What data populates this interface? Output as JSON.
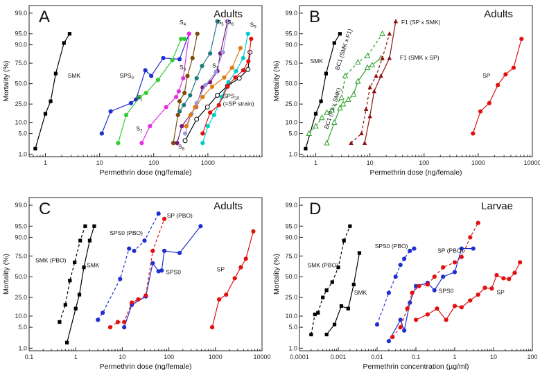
{
  "chart_data": [
    {
      "type": "line",
      "panel_letter": "A",
      "title": "Adults",
      "xlabel": "Permethrin dose (ng/female)",
      "ylabel": "Mortality (%)",
      "xscale": "log",
      "yscale": "probit",
      "xlim": [
        0.5,
        10000
      ],
      "ylim": [
        0.8,
        99.5
      ],
      "xticks": [
        1,
        10,
        100,
        1000
      ],
      "yticks": [
        1.0,
        5.0,
        10.0,
        25.0,
        50.0,
        75.0,
        90.0,
        95.0,
        99.0
      ],
      "series": [
        {
          "name": "SMK",
          "color": "#000000",
          "marker": "square",
          "dash": false,
          "x": [
            0.65,
            1.0,
            1.25,
            1.55,
            2.2,
            2.8
          ],
          "y": [
            1.6,
            16,
            28,
            63,
            91,
            95
          ]
        },
        {
          "name": "SPS0",
          "color": "#1f2fd0",
          "marker": "circle",
          "dash": false,
          "x": [
            11,
            16,
            38,
            47,
            70,
            90,
            150,
            300,
            450
          ],
          "y": [
            5,
            18,
            26,
            30,
            67,
            60,
            80,
            79,
            95
          ]
        },
        {
          "name": "S1",
          "color": "#33cc33",
          "marker": "circle",
          "dash": false,
          "x": [
            22,
            31,
            55,
            72,
            120,
            220,
            320,
            370
          ],
          "y": [
            2.5,
            15,
            33,
            38,
            55,
            78,
            93,
            93
          ]
        },
        {
          "name": "S2",
          "color": "#e030e0",
          "marker": "circle",
          "dash": false,
          "x": [
            60,
            85,
            170,
            260,
            290,
            350,
            450
          ],
          "y": [
            2.5,
            8,
            22,
            33,
            40,
            57,
            95
          ]
        },
        {
          "name": "S3",
          "color": "#7a4a0a",
          "marker": "circle",
          "dash": false,
          "x": [
            230,
            280,
            300,
            370,
            420,
            520,
            640
          ],
          "y": [
            2.5,
            15,
            28,
            38,
            60,
            80,
            95
          ]
        },
        {
          "name": "S4",
          "color": "#1f7a80",
          "marker": "circle",
          "dash": false,
          "x": [
            300,
            360,
            470,
            620,
            780,
            1100,
            1500
          ],
          "y": [
            18,
            24,
            35,
            57,
            72,
            84,
            98
          ]
        },
        {
          "name": "S5",
          "color": "#7a1a7a",
          "marker": "circle",
          "dash": false,
          "x": [
            270,
            330,
            600,
            800,
            1100,
            1500,
            1700,
            2300
          ],
          "y": [
            2.5,
            8,
            22,
            45,
            52,
            66,
            84,
            98
          ]
        },
        {
          "name": "S6",
          "color": "#9a9ae0",
          "marker": "circle",
          "dash": false,
          "x": [
            380,
            500,
            620,
            900,
            1400,
            1900,
            2400
          ],
          "y": [
            5,
            16,
            26,
            48,
            65,
            85,
            98
          ]
        },
        {
          "name": "S7",
          "color": "#e07a10",
          "marker": "circle",
          "dash": false,
          "x": [
            400,
            480,
            580,
            800,
            1200,
            2000,
            2800,
            4000
          ],
          "y": [
            8,
            15,
            22,
            33,
            46,
            58,
            70,
            88
          ]
        },
        {
          "name": "S8",
          "color": "#00cccc",
          "marker": "circle",
          "dash": false,
          "x": [
            800,
            1000,
            1300,
            1800,
            2400,
            3300,
            4500,
            5500
          ],
          "y": [
            2.5,
            8,
            15,
            33,
            52,
            66,
            80,
            95
          ]
        },
        {
          "name": "SPS10 (=SP strain)",
          "color": "#000000",
          "marker": "open-circle",
          "dash": false,
          "x": [
            380,
            620,
            980,
            1500,
            2300,
            3800,
            5500,
            6000
          ],
          "y": [
            3,
            12,
            22,
            35,
            47,
            57,
            68,
            85
          ]
        },
        {
          "name": "SP",
          "color": "#e01010",
          "marker": "circle",
          "dash": false,
          "x": [
            800,
            1100,
            1600,
            2300,
            3200,
            4500,
            5600,
            6300
          ],
          "y": [
            5,
            17,
            24,
            46,
            58,
            67,
            77,
            93
          ]
        }
      ],
      "annotations": [
        "SMK",
        "SPS0",
        "S1",
        "S2",
        "S3",
        "S4",
        "S5",
        "S6",
        "S7",
        "S8",
        "SPS10",
        "(=SP strain)",
        "S9"
      ]
    },
    {
      "type": "line",
      "panel_letter": "B",
      "title": "Adults",
      "xlabel": "Permethrin dose (ng/female)",
      "ylabel": "Mortality (%)",
      "xscale": "log",
      "yscale": "probit",
      "xlim": [
        0.5,
        10000
      ],
      "ylim": [
        0.8,
        99.5
      ],
      "xticks": [
        1,
        10,
        100,
        1000,
        10000
      ],
      "yticks": [
        1.0,
        5.0,
        10.0,
        25.0,
        50.0,
        75.0,
        90.0,
        95.0,
        99.0
      ],
      "series": [
        {
          "name": "SMK",
          "color": "#000000",
          "marker": "square",
          "dash": false,
          "x": [
            0.65,
            1.0,
            1.25,
            1.55,
            2.2,
            2.8
          ],
          "y": [
            1.6,
            16,
            28,
            63,
            91,
            95
          ]
        },
        {
          "name": "BC1 (SMK x F1)",
          "color": "#2aa02a",
          "marker": "open-triangle",
          "dash": true,
          "x": [
            0.75,
            1.0,
            1.3,
            1.6,
            2.0,
            3.0,
            3.5,
            6.0,
            9.0,
            17.0
          ],
          "y": [
            5,
            8,
            13,
            17,
            19,
            32,
            60,
            76,
            82,
            95
          ]
        },
        {
          "name": "BC1 (F1 x SMK)",
          "color": "#2aa02a",
          "marker": "open-triangle",
          "dash": false,
          "x": [
            1.6,
            2.2,
            2.8,
            3.2,
            4.0,
            5.0,
            6.0,
            9.0,
            11.0,
            16.0
          ],
          "y": [
            2.5,
            10,
            21,
            25,
            30,
            36,
            53,
            70,
            73,
            80
          ]
        },
        {
          "name": "F1 (SP x SMK)",
          "color": "#8b1010",
          "marker": "triangle",
          "dash": true,
          "x": [
            4.5,
            7.0,
            8.5,
            10.0,
            13.0,
            17.0,
            23.0
          ],
          "y": [
            2.5,
            5,
            20,
            45,
            60,
            80,
            95
          ]
        },
        {
          "name": "F1 (SMK x SP)",
          "color": "#8b1010",
          "marker": "triangle",
          "dash": false,
          "x": [
            8.0,
            10.0,
            12.0,
            16.0,
            23.0,
            30.0
          ],
          "y": [
            2.5,
            14,
            40,
            60,
            80,
            98
          ]
        },
        {
          "name": "SP",
          "color": "#e01010",
          "marker": "circle",
          "dash": false,
          "x": [
            800,
            1100,
            1600,
            2300,
            3200,
            4500,
            6300
          ],
          "y": [
            5,
            18,
            26,
            48,
            62,
            70,
            93
          ]
        }
      ],
      "annotations": [
        "SMK",
        "BC1 (SMK x F1)",
        "BC1 (F1 x SMK)",
        "F1 (SP x SMK)",
        "F1 (SMK x SP)",
        "SP"
      ]
    },
    {
      "type": "line",
      "panel_letter": "C",
      "title": "Adults",
      "xlabel": "Permethrin dose (ng/female)",
      "ylabel": "Mortality (%)",
      "xscale": "log",
      "yscale": "probit",
      "xlim": [
        0.1,
        10000
      ],
      "ylim": [
        0.8,
        99.5
      ],
      "xticks": [
        0.1,
        1,
        10,
        100,
        1000,
        10000
      ],
      "yticks": [
        1.0,
        5.0,
        10.0,
        25.0,
        50.0,
        75.0,
        90.0,
        95.0,
        99.0
      ],
      "series": [
        {
          "name": "SMK (PBO)",
          "color": "#000000",
          "marker": "square",
          "dash": true,
          "x": [
            0.45,
            0.6,
            0.75,
            0.95,
            1.25,
            1.6
          ],
          "y": [
            7,
            18,
            45,
            68,
            88,
            95
          ]
        },
        {
          "name": "SMK",
          "color": "#000000",
          "marker": "square",
          "dash": false,
          "x": [
            0.65,
            1.0,
            1.2,
            1.5,
            2.0,
            2.5
          ],
          "y": [
            1.6,
            15,
            28,
            62,
            88,
            95
          ]
        },
        {
          "name": "SPS0 (PBO)",
          "color": "#1f2fd0",
          "marker": "circle",
          "dash": true,
          "x": [
            3.0,
            3.8,
            9.0,
            14.0,
            18.0,
            30.0,
            60.0
          ],
          "y": [
            8,
            12,
            47,
            82,
            80,
            88,
            98
          ]
        },
        {
          "name": "SPS0",
          "color": "#1f2fd0",
          "marker": "circle",
          "dash": false,
          "x": [
            11,
            16,
            32,
            45,
            60,
            70,
            80,
            170,
            480
          ],
          "y": [
            5,
            18,
            26,
            67,
            57,
            58,
            80,
            78,
            95
          ]
        },
        {
          "name": "SP (PBO)",
          "color": "#e01010",
          "marker": "circle",
          "dash": true,
          "x": [
            5.5,
            8.0,
            11.0,
            16.0,
            22.0,
            32.0,
            45.0,
            80.0
          ],
          "y": [
            5,
            7,
            7,
            20,
            23,
            27,
            80,
            97
          ]
        },
        {
          "name": "SP",
          "color": "#e01010",
          "marker": "circle",
          "dash": false,
          "x": [
            850,
            1200,
            1700,
            2600,
            3500,
            4500,
            6500
          ],
          "y": [
            5,
            23,
            28,
            48,
            62,
            72,
            93
          ]
        }
      ],
      "annotations": [
        "SMK (PBO)",
        "SMK",
        "SPS0 (PBO)",
        "SP (PBO)",
        "SPS0",
        "SP"
      ]
    },
    {
      "type": "line",
      "panel_letter": "D",
      "title": "Larvae",
      "xlabel": "Permethrin concentration (µg/ml)",
      "ylabel": "Mortality (%)",
      "xscale": "log",
      "yscale": "probit",
      "xlim": [
        0.0001,
        100
      ],
      "ylim": [
        0.8,
        99.5
      ],
      "xticks": [
        0.0001,
        0.001,
        0.01,
        0.1,
        1,
        10,
        100
      ],
      "yticks": [
        1.0,
        5.0,
        10.0,
        25.0,
        50.0,
        75.0,
        90.0,
        95.0,
        99.0
      ],
      "series": [
        {
          "name": "SMK (PBO)",
          "color": "#000000",
          "marker": "square",
          "dash": true,
          "x": [
            0.0002,
            0.00025,
            0.0003,
            0.0004,
            0.0005,
            0.0007,
            0.001,
            0.0014,
            0.002
          ],
          "y": [
            3,
            11,
            12,
            25,
            33,
            43,
            62,
            88,
            95
          ]
        },
        {
          "name": "SMK",
          "color": "#000000",
          "marker": "square",
          "dash": false,
          "x": [
            0.0005,
            0.0008,
            0.0012,
            0.0018,
            0.0025,
            0.0035
          ],
          "y": [
            3,
            6,
            17,
            15,
            40,
            78
          ]
        },
        {
          "name": "SPS0 (PBO)",
          "color": "#1f2fd0",
          "marker": "circle",
          "dash": true,
          "x": [
            0.01,
            0.02,
            0.03,
            0.04,
            0.05,
            0.07,
            0.09
          ],
          "y": [
            6,
            30,
            50,
            65,
            72,
            80,
            82
          ]
        },
        {
          "name": "SPS0",
          "color": "#1f2fd0",
          "marker": "circle",
          "dash": false,
          "x": [
            0.02,
            0.04,
            0.05,
            0.07,
            0.1,
            0.2,
            0.3,
            0.5,
            1.0,
            1.5,
            3.0
          ],
          "y": [
            1.8,
            8,
            4,
            20,
            38,
            42,
            33,
            50,
            56,
            82,
            82
          ]
        },
        {
          "name": "SP (PBO)",
          "color": "#e01010",
          "marker": "circle",
          "dash": true,
          "x": [
            0.025,
            0.04,
            0.06,
            0.08,
            0.12,
            0.2,
            0.3,
            0.5,
            1.0,
            1.5,
            2.5,
            4.0
          ],
          "y": [
            2.5,
            5,
            15,
            30,
            38,
            40,
            50,
            62,
            68,
            74,
            90,
            96
          ]
        },
        {
          "name": "SP",
          "color": "#e01010",
          "marker": "circle",
          "dash": false,
          "x": [
            0.1,
            0.2,
            0.35,
            0.6,
            1.0,
            1.5,
            2.5,
            4.0,
            6.0,
            9.0,
            12.0,
            18.0,
            25.0,
            35.0,
            48.0
          ],
          "y": [
            8,
            11,
            15,
            8,
            17,
            16,
            22,
            28,
            36,
            35,
            52,
            48,
            47,
            55,
            68
          ]
        }
      ],
      "annotations": [
        "SMK (PBO)",
        "SMK",
        "SPS0 (PBO)",
        "SP (PBO)",
        "SPS0",
        "SP"
      ]
    }
  ]
}
